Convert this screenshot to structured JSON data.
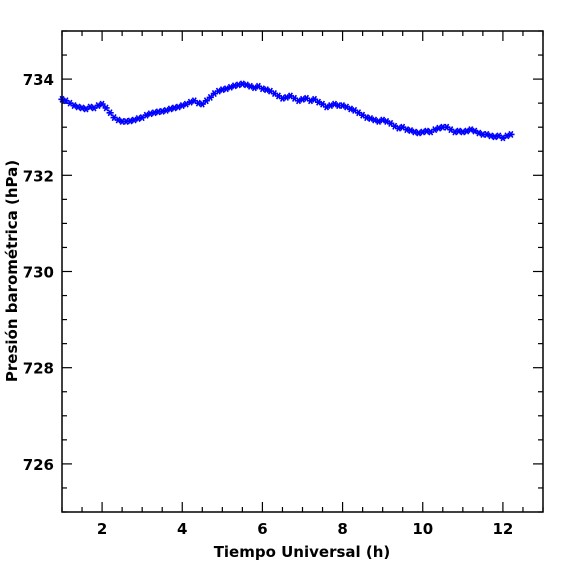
{
  "chart_data": {
    "type": "scatter",
    "title": "",
    "xlabel": "Tiempo Universal (h)",
    "ylabel": "Presión barométrica (hPa)",
    "xlim": [
      1,
      13
    ],
    "ylim": [
      725,
      735
    ],
    "xticks": [
      2,
      4,
      6,
      8,
      10,
      12
    ],
    "yticks": [
      726,
      728,
      730,
      732,
      734
    ],
    "grid": false,
    "marker_color": "#0000ff",
    "marker": "asterisk",
    "series": [
      {
        "x": [
          1.0,
          1.1,
          1.2,
          1.3,
          1.4,
          1.5,
          1.6,
          1.7,
          1.8,
          1.9,
          2.0,
          2.1,
          2.2,
          2.3,
          2.4,
          2.5,
          2.6,
          2.7,
          2.8,
          2.9,
          3.0,
          3.1,
          3.2,
          3.3,
          3.4,
          3.5,
          3.6,
          3.7,
          3.8,
          3.9,
          4.0,
          4.1,
          4.2,
          4.3,
          4.4,
          4.5,
          4.6,
          4.7,
          4.8,
          4.9,
          5.0,
          5.1,
          5.2,
          5.3,
          5.4,
          5.5,
          5.6,
          5.7,
          5.8,
          5.9,
          6.0,
          6.1,
          6.2,
          6.3,
          6.4,
          6.5,
          6.6,
          6.7,
          6.8,
          6.9,
          7.0,
          7.1,
          7.2,
          7.3,
          7.4,
          7.5,
          7.6,
          7.7,
          7.8,
          7.9,
          8.0,
          8.1,
          8.2,
          8.3,
          8.4,
          8.5,
          8.6,
          8.7,
          8.8,
          8.9,
          9.0,
          9.1,
          9.2,
          9.3,
          9.4,
          9.5,
          9.6,
          9.7,
          9.8,
          9.9,
          10.0,
          10.1,
          10.2,
          10.3,
          10.4,
          10.5,
          10.6,
          10.7,
          10.8,
          10.9,
          11.0,
          11.1,
          11.2,
          11.3,
          11.4,
          11.5,
          11.6,
          11.7,
          11.8,
          11.9,
          12.0,
          12.1,
          12.2
        ],
        "y": [
          733.58,
          733.55,
          733.5,
          733.45,
          733.42,
          733.4,
          733.38,
          733.42,
          733.4,
          733.45,
          733.48,
          733.4,
          733.3,
          733.2,
          733.15,
          733.12,
          733.12,
          733.13,
          733.15,
          733.18,
          733.2,
          733.25,
          733.28,
          733.3,
          733.32,
          733.33,
          733.35,
          733.38,
          733.4,
          733.42,
          733.45,
          733.48,
          733.52,
          733.55,
          733.5,
          733.48,
          733.55,
          733.62,
          733.7,
          733.75,
          733.78,
          733.8,
          733.83,
          733.86,
          733.88,
          733.9,
          733.88,
          733.85,
          733.82,
          733.85,
          733.8,
          733.78,
          733.75,
          733.7,
          733.65,
          733.6,
          733.62,
          733.65,
          733.6,
          733.55,
          733.58,
          733.6,
          733.55,
          733.58,
          733.52,
          733.48,
          733.42,
          733.45,
          733.48,
          733.45,
          733.45,
          733.42,
          733.38,
          733.35,
          733.3,
          733.25,
          733.2,
          733.18,
          733.15,
          733.12,
          733.15,
          733.12,
          733.08,
          733.02,
          732.98,
          733.0,
          732.95,
          732.93,
          732.9,
          732.88,
          732.9,
          732.92,
          732.9,
          732.95,
          732.98,
          733.0,
          733.0,
          732.95,
          732.9,
          732.92,
          732.9,
          732.92,
          732.95,
          732.92,
          732.88,
          732.85,
          732.85,
          732.82,
          732.8,
          732.82,
          732.78,
          732.82,
          732.85
        ]
      }
    ]
  }
}
